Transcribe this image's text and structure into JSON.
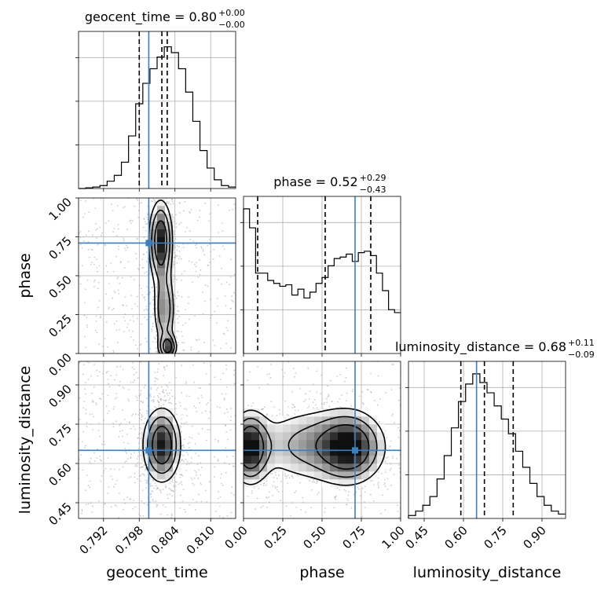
{
  "chart_data": {
    "type": "corner",
    "parameters": [
      "geocent_time",
      "phase",
      "luminosity_distance"
    ],
    "axis_labels": [
      "geocent_time",
      "phase",
      "luminosity_distance"
    ],
    "ranges": {
      "geocent_time": [
        0.7878,
        0.8142
      ],
      "phase": [
        0.0,
        1.0
      ],
      "luminosity_distance": [
        0.39,
        0.99
      ]
    },
    "ticks": {
      "geocent_time": [
        "0.792",
        "0.798",
        "0.804",
        "0.810"
      ],
      "phase": [
        "0.00",
        "0.25",
        "0.50",
        "0.75",
        "1.00"
      ],
      "luminosity_distance": [
        "0.45",
        "0.60",
        "0.75",
        "0.90"
      ]
    },
    "titles": [
      {
        "param": "geocent_time",
        "label": "geocent_time = 0.80",
        "plus": "+0.00",
        "minus": "−0.00"
      },
      {
        "param": "phase",
        "label": "phase = 0.52",
        "plus": "+0.29",
        "minus": "−0.43"
      },
      {
        "param": "luminosity_distance",
        "label": "luminosity_distance = 0.68",
        "plus": "+0.11",
        "minus": "−0.09"
      }
    ],
    "truths": {
      "geocent_time": 0.7996,
      "phase": 0.71,
      "luminosity_distance": 0.65
    },
    "quantiles": {
      "geocent_time": [
        0.798,
        0.8018,
        0.8027
      ],
      "phase": [
        0.09,
        0.52,
        0.81
      ],
      "luminosity_distance": [
        0.59,
        0.68,
        0.79
      ]
    },
    "histograms": {
      "geocent_time": [
        0,
        0.005,
        0.01,
        0.02,
        0.05,
        0.09,
        0.18,
        0.36,
        0.58,
        0.72,
        0.82,
        0.9,
        0.97,
        0.93,
        0.82,
        0.66,
        0.46,
        0.26,
        0.14,
        0.06,
        0.02,
        0.01
      ],
      "phase": [
        0.99,
        0.86,
        0.55,
        0.55,
        0.5,
        0.48,
        0.46,
        0.47,
        0.4,
        0.44,
        0.38,
        0.42,
        0.48,
        0.52,
        0.6,
        0.65,
        0.66,
        0.68,
        0.63,
        0.69,
        0.7,
        0.67,
        0.55,
        0.43,
        0.3,
        0.28
      ],
      "luminosity_distance": [
        0.02,
        0.05,
        0.09,
        0.15,
        0.27,
        0.43,
        0.62,
        0.8,
        0.92,
        0.99,
        0.93,
        0.86,
        0.77,
        0.68,
        0.58,
        0.46,
        0.35,
        0.24,
        0.15,
        0.09,
        0.05,
        0.03
      ]
    },
    "grid": true,
    "legend": "none"
  }
}
